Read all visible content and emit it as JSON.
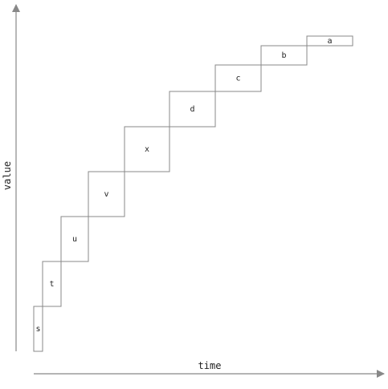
{
  "diagram": {
    "axes": {
      "x_label": "time",
      "y_label": "value",
      "color": "#888888"
    },
    "stroke_color": "#888888",
    "steps": [
      {
        "label": "s"
      },
      {
        "label": "t"
      },
      {
        "label": "u"
      },
      {
        "label": "v"
      },
      {
        "label": "x"
      },
      {
        "label": "d"
      },
      {
        "label": "c"
      },
      {
        "label": "b"
      },
      {
        "label": "a"
      }
    ]
  }
}
